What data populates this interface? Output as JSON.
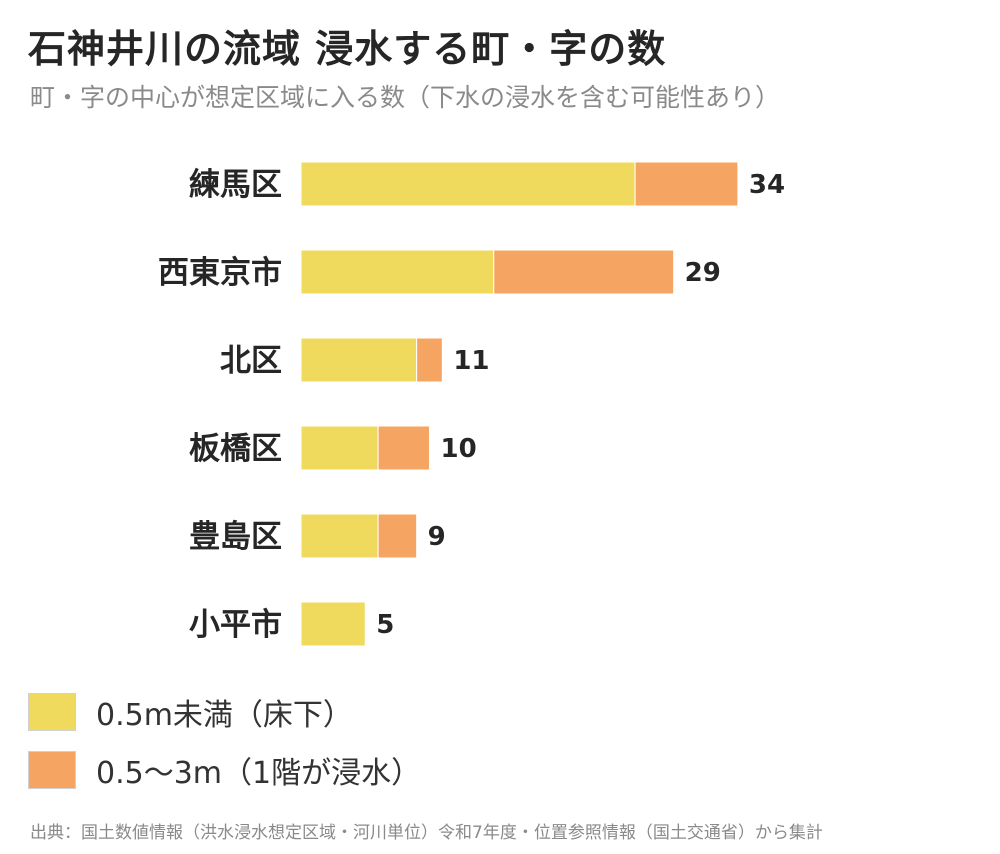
{
  "header": {
    "title": "石神井川の流域 浸水する町・字の数",
    "subtitle": "町・字の中心が想定区域に入る数（下水の浸水を含む可能性あり）"
  },
  "chart_data": {
    "type": "bar",
    "orientation": "horizontal",
    "stacked": true,
    "categories": [
      "練馬区",
      "西東京市",
      "北区",
      "板橋区",
      "豊島区",
      "小平市"
    ],
    "series": [
      {
        "name": "0.5m未満（床下）",
        "color": "#f0da5e",
        "values": [
          26,
          15,
          9,
          6,
          6,
          5
        ]
      },
      {
        "name": "0.5〜3m（1階が浸水）",
        "color": "#f5a561",
        "values": [
          8,
          14,
          2,
          4,
          3,
          0
        ]
      }
    ],
    "totals": [
      "34",
      "29",
      "11",
      "10",
      "9",
      "5"
    ],
    "grid": false,
    "legend_placement": "bottom-left"
  },
  "legend": [
    {
      "label": "0.5m未満（床下）",
      "color": "#f0da5e"
    },
    {
      "label": "0.5〜3m（1階が浸水）",
      "color": "#f5a561"
    }
  ],
  "source": "出典：国土数値情報（洪水浸水想定区域・河川単位）令和7年度・位置参照情報（国土交通省）から集計"
}
